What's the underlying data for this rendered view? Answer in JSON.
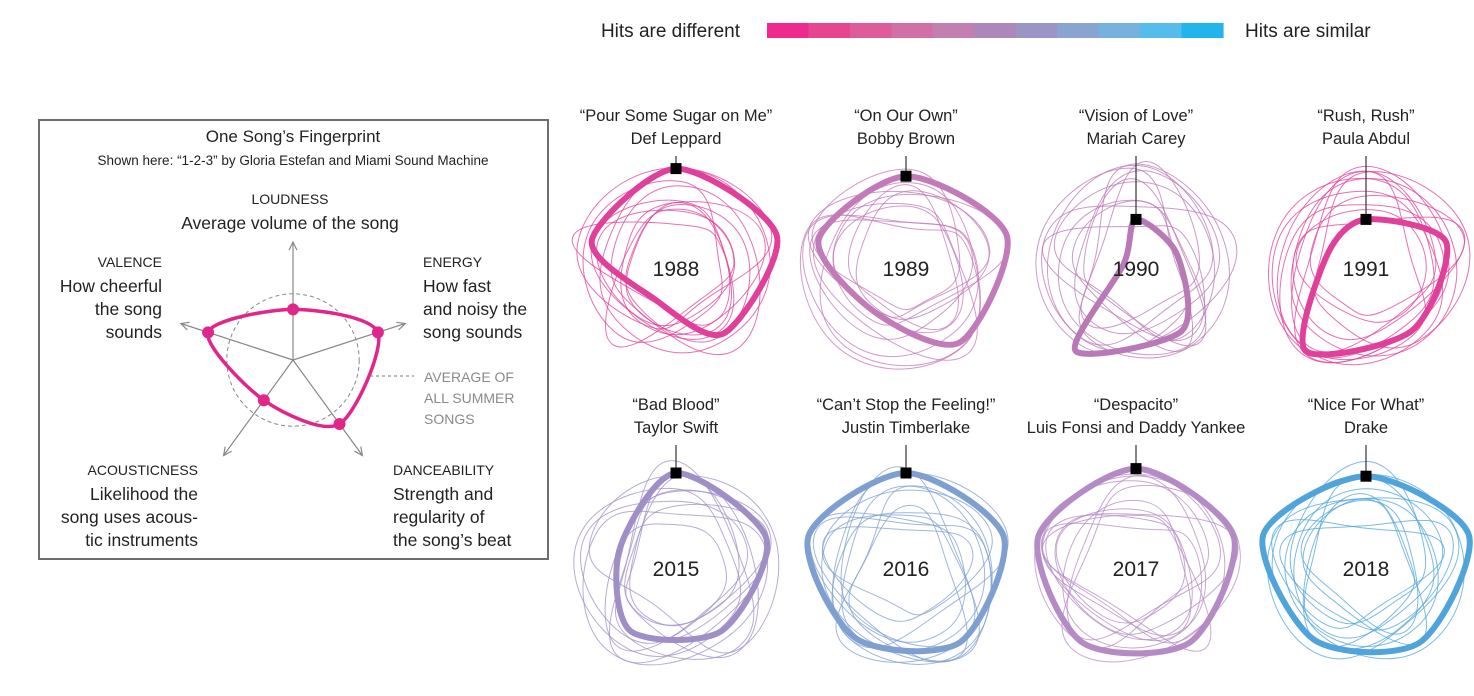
{
  "legend": {
    "left_label": "Hits are different",
    "right_label": "Hits are similar",
    "gradient": [
      "#ee2a8c",
      "#e84590",
      "#de5c9a",
      "#d070a6",
      "#c27fb0",
      "#ab87bb",
      "#9b95c6",
      "#8aa4d2",
      "#76b2dd",
      "#56bcea",
      "#22b5ec"
    ]
  },
  "fingerprint_panel": {
    "title": "One Song’s Fingerprint",
    "subtitle": "Shown here: “1-2-3” by Gloria Estefan and Miami Sound Machine",
    "song_color": "#e0268a",
    "average_label": [
      "AVERAGE OF",
      "ALL SUMMER",
      "SONGS"
    ],
    "axes": [
      {
        "name": "LOUDNESS",
        "desc": [
          "Average volume of the song"
        ]
      },
      {
        "name": "ENERGY",
        "desc": [
          "How fast",
          "and noisy the",
          "song sounds"
        ]
      },
      {
        "name": "DANCEABILITY",
        "desc": [
          "Strength and",
          "regularity of",
          "the song’s beat"
        ]
      },
      {
        "name": "ACOUSTICNESS",
        "desc": [
          "Likelihood the",
          "song uses acous-",
          "tic instruments"
        ]
      },
      {
        "name": "VALENCE",
        "desc": [
          "How cheerful",
          "the song",
          "sounds"
        ]
      }
    ]
  },
  "chart_data": {
    "type": "radar",
    "axes": [
      "LOUDNESS",
      "ENERGY",
      "DANCEABILITY",
      "ACOUSTICNESS",
      "VALENCE"
    ],
    "range": [
      0,
      1
    ],
    "example": {
      "song": "“1-2-3” by Gloria Estefan and Miami Sound Machine",
      "values": [
        0.55,
        0.97,
        0.86,
        0.54,
        0.97
      ]
    },
    "average": [
      0.72,
      0.72,
      0.72,
      0.72,
      0.72
    ],
    "small_multiples": [
      {
        "year": "1988",
        "song": "“Pour Some Sugar on Me”",
        "artist": "Def Leppard",
        "color": "#e0409a",
        "values": [
          0.92,
          0.98,
          0.75,
          0.35,
          0.82
        ]
      },
      {
        "year": "1989",
        "song": "“On Our Own”",
        "artist": "Bobby Brown",
        "color": "#c37ab8",
        "values": [
          0.85,
          0.98,
          0.85,
          0.5,
          0.85
        ]
      },
      {
        "year": "1990",
        "song": "“Vision of Love”",
        "artist": "Mariah Carey",
        "color": "#b978b6",
        "values": [
          0.45,
          0.4,
          0.72,
          0.95,
          0.12
        ]
      },
      {
        "year": "1991",
        "song": "“Rush, Rush”",
        "artist": "Paula Abdul",
        "color": "#e0409a",
        "values": [
          0.45,
          0.78,
          0.72,
          0.95,
          0.38
        ]
      },
      {
        "year": "2015",
        "song": "“Bad Blood”",
        "artist": "Taylor Swift",
        "color": "#a08fc7",
        "values": [
          0.88,
          0.88,
          0.72,
          0.72,
          0.55
        ]
      },
      {
        "year": "2016",
        "song": "“Can’t Stop the Feeling!”",
        "artist": "Justin Timberlake",
        "color": "#7f9fd0",
        "values": [
          0.88,
          0.95,
          0.85,
          0.8,
          0.95
        ]
      },
      {
        "year": "2017",
        "song": "“Despacito”",
        "artist": "Luis Fonsi and Daddy Yankee",
        "color": "#b48bc4",
        "values": [
          0.92,
          0.95,
          0.85,
          0.85,
          0.95
        ]
      },
      {
        "year": "2018",
        "song": "“Nice For What”",
        "artist": "Drake",
        "color": "#4fa4dc",
        "values": [
          0.85,
          1.0,
          0.85,
          0.82,
          1.0
        ]
      }
    ]
  }
}
